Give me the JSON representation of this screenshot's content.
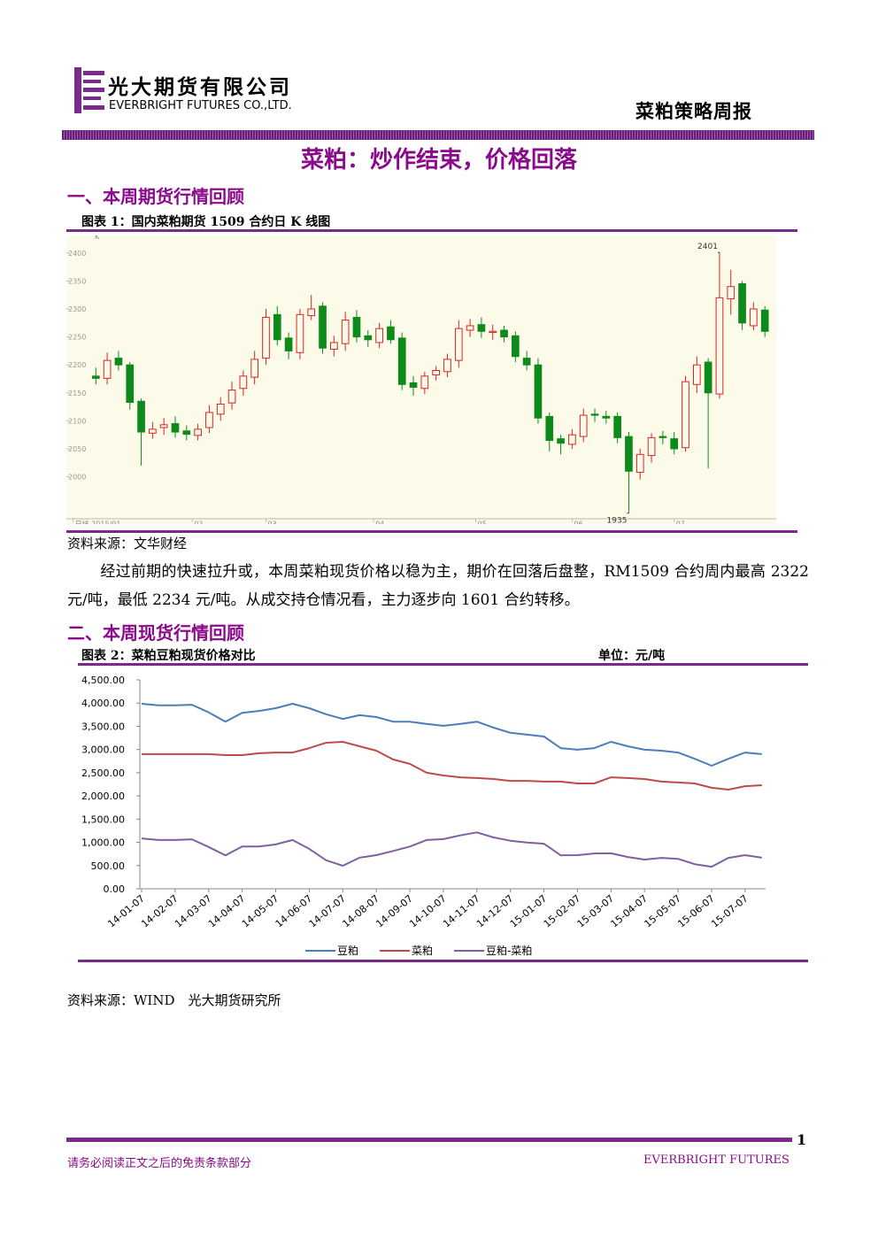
{
  "header": {
    "company_cn": "光大期货有限公司",
    "company_en": "EVERBRIGHT FUTURES CO.,LTD.",
    "report_name": "菜粕策略周报"
  },
  "title": "菜粕：炒作结束，价格回落",
  "sections": [
    {
      "heading": "一、本周期货行情回顾",
      "figure_caption": "图表 1：国内菜粕期货 1509 合约日 K 线图",
      "source": "资料来源：文华财经",
      "paragraph": "经过前期的快速拉升或，本周菜粕现货价格以稳为主，期价在回落后盘整，RM1509 合约周内最高 2322 元/吨，最低 2234 元/吨。从成交持仓情况看，主力逐步向 1601 合约转移。"
    },
    {
      "heading": "二、本周现货行情回顾",
      "figure_caption": "图表 2：菜粕豆粕现货价格对比",
      "unit": "单位：元/吨",
      "source": "资料来源：WIND　光大期货研究所"
    }
  ],
  "chart_data": [
    {
      "type": "candlestick",
      "y_label": "K",
      "up_color": "#e0211f",
      "down_color": "#0d8a1a",
      "open": [
        2180,
        2176,
        2212,
        2200,
        2135,
        2078,
        2088,
        2095,
        2082,
        2074,
        2088,
        2112,
        2132,
        2158,
        2178,
        2212,
        2290,
        2248,
        2222,
        2288,
        2305,
        2228,
        2238,
        2285,
        2252,
        2240,
        2268,
        2248,
        2168,
        2158,
        2182,
        2188,
        2208,
        2262,
        2272,
        2258,
        2262,
        2252,
        2212,
        2200,
        2108,
        2068,
        2058,
        2072,
        2112,
        2108,
        2108,
        2072,
        2008,
        2038,
        2072,
        2068,
        2052,
        2165,
        2205,
        2148,
        2318,
        2345,
        2270,
        2298
      ],
      "high": [
        2195,
        2222,
        2225,
        2205,
        2140,
        2098,
        2105,
        2108,
        2092,
        2095,
        2128,
        2142,
        2170,
        2190,
        2225,
        2300,
        2305,
        2258,
        2300,
        2325,
        2312,
        2252,
        2295,
        2298,
        2262,
        2275,
        2280,
        2258,
        2180,
        2188,
        2198,
        2220,
        2280,
        2282,
        2285,
        2272,
        2270,
        2260,
        2225,
        2212,
        2115,
        2075,
        2085,
        2122,
        2122,
        2118,
        2115,
        2080,
        2050,
        2078,
        2082,
        2080,
        2180,
        2215,
        2212,
        2401,
        2370,
        2350,
        2312,
        2305
      ],
      "low": [
        2165,
        2165,
        2190,
        2120,
        2020,
        2068,
        2075,
        2070,
        2065,
        2065,
        2078,
        2100,
        2120,
        2145,
        2165,
        2200,
        2235,
        2210,
        2210,
        2280,
        2220,
        2215,
        2225,
        2240,
        2232,
        2230,
        2238,
        2155,
        2145,
        2148,
        2172,
        2178,
        2195,
        2250,
        2248,
        2245,
        2240,
        2205,
        2190,
        2095,
        2045,
        2040,
        2050,
        2062,
        2098,
        2095,
        2060,
        1935,
        1995,
        2025,
        2058,
        2040,
        2045,
        2150,
        2015,
        2140,
        2290,
        2262,
        2262,
        2250
      ],
      "close": [
        2176,
        2208,
        2200,
        2133,
        2080,
        2085,
        2093,
        2080,
        2076,
        2085,
        2115,
        2130,
        2155,
        2180,
        2210,
        2285,
        2245,
        2225,
        2290,
        2300,
        2230,
        2240,
        2280,
        2250,
        2245,
        2265,
        2245,
        2165,
        2160,
        2180,
        2190,
        2210,
        2265,
        2270,
        2260,
        2260,
        2250,
        2215,
        2200,
        2105,
        2065,
        2060,
        2075,
        2110,
        2110,
        2105,
        2070,
        2010,
        2040,
        2070,
        2070,
        2050,
        2170,
        2200,
        2150,
        2320,
        2340,
        2275,
        2300,
        2260
      ],
      "annotations": [
        {
          "text": "2401",
          "index": 55,
          "value": 2401
        },
        {
          "text": "1935",
          "index": 47,
          "value": 1935
        }
      ],
      "xlim": [
        -2.6,
        60
      ],
      "xticks": [
        {
          "value": -2,
          "label": "日线 2015/01"
        },
        {
          "value": 8.5,
          "label": "02"
        },
        {
          "value": 15,
          "label": "03"
        },
        {
          "value": 24.5,
          "label": "04"
        },
        {
          "value": 33.5,
          "label": "05"
        },
        {
          "value": 42,
          "label": "06"
        },
        {
          "value": 51,
          "label": "07"
        }
      ],
      "ylim": [
        1925,
        2425
      ],
      "yticks": [
        2000,
        2050,
        2100,
        2150,
        2200,
        2250,
        2300,
        2350,
        2400
      ]
    },
    {
      "type": "line",
      "categories": [
        "14-01-07",
        null,
        "14-02-07",
        null,
        "14-03-07",
        null,
        "14-04-07",
        null,
        "14-05-07",
        null,
        "14-06-07",
        null,
        "14-07-07",
        null,
        "14-08-07",
        null,
        "14-09-07",
        null,
        "14-10-07",
        null,
        "14-11-07",
        null,
        "14-12-07",
        null,
        "15-01-07",
        null,
        "15-02-07",
        null,
        "15-03-07",
        null,
        "15-04-07",
        null,
        "15-05-07",
        null,
        "15-06-07",
        null,
        "15-07-07",
        null
      ],
      "series": [
        {
          "name": "豆粕",
          "color": "#4a7ebb",
          "values": [
            3985,
            3950,
            3950,
            3965,
            3800,
            3600,
            3790,
            3830,
            3890,
            3985,
            3890,
            3760,
            3660,
            3740,
            3700,
            3600,
            3600,
            3550,
            3510,
            3550,
            3600,
            3470,
            3360,
            3320,
            3280,
            3030,
            2995,
            3030,
            3165,
            3070,
            2995,
            2975,
            2935,
            2800,
            2650,
            2800,
            2935,
            2900
          ]
        },
        {
          "name": "菜粕",
          "color": "#be4b48",
          "values": [
            2900,
            2900,
            2900,
            2900,
            2900,
            2880,
            2880,
            2920,
            2935,
            2935,
            3030,
            3145,
            3165,
            3070,
            2975,
            2785,
            2690,
            2500,
            2440,
            2400,
            2385,
            2365,
            2325,
            2325,
            2310,
            2310,
            2270,
            2270,
            2400,
            2385,
            2365,
            2310,
            2290,
            2270,
            2175,
            2135,
            2210,
            2230
          ]
        },
        {
          "name": "豆粕-菜粕",
          "color": "#7d60a0",
          "values": [
            1085,
            1050,
            1050,
            1065,
            900,
            720,
            910,
            910,
            955,
            1050,
            860,
            615,
            495,
            670,
            725,
            815,
            910,
            1050,
            1070,
            1150,
            1215,
            1105,
            1035,
            995,
            970,
            720,
            725,
            760,
            765,
            685,
            630,
            665,
            645,
            530,
            475,
            665,
            725,
            670
          ]
        }
      ],
      "ylim": [
        0,
        4500
      ],
      "yticks": [
        {
          "value": 0,
          "label": "0.00"
        },
        {
          "value": 500,
          "label": "500.00"
        },
        {
          "value": 1000,
          "label": "1,000.00"
        },
        {
          "value": 1500,
          "label": "1,500.00"
        },
        {
          "value": 2000,
          "label": "2,000.00"
        },
        {
          "value": 2500,
          "label": "2,500.00"
        },
        {
          "value": 3000,
          "label": "3,000.00"
        },
        {
          "value": 3500,
          "label": "3,500.00"
        },
        {
          "value": 4000,
          "label": "4,000.00"
        },
        {
          "value": 4500,
          "label": "4,500.00"
        }
      ],
      "legend": "bottom"
    }
  ],
  "footer": {
    "disclaimer": "请务必阅读正文之后的免责条款部分",
    "brand": "EVERBRIGHT FUTURES",
    "page_number": "1"
  }
}
